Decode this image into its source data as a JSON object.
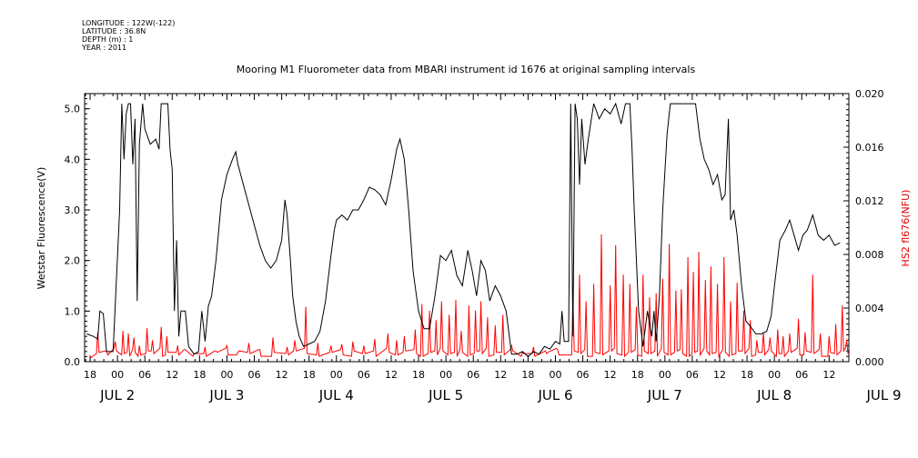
{
  "metadata_lines": [
    "LONGITUDE : 122W(-122)",
    "LATITUDE : 36.8N",
    "DEPTH (m) : 1",
    "YEAR : 2011"
  ],
  "chart_data": {
    "type": "line",
    "title": "Mooring M1 Fluorometer data from MBARI instrument id 1676 at original sampling intervals",
    "xlabel": "",
    "x_tick_labels": [
      "18",
      "00",
      "06",
      "12",
      "18",
      "00",
      "06",
      "12",
      "18",
      "00",
      "06",
      "12",
      "18",
      "00",
      "06",
      "12",
      "18",
      "00",
      "06",
      "12",
      "18",
      "00",
      "06",
      "12",
      "18",
      "00",
      "06",
      "12"
    ],
    "x_day_labels": [
      {
        "label": "JUL  2",
        "day": 2
      },
      {
        "label": "JUL  3",
        "day": 3
      },
      {
        "label": "JUL  4",
        "day": 4
      },
      {
        "label": "JUL  5",
        "day": 5
      },
      {
        "label": "JUL  6",
        "day": 6
      },
      {
        "label": "JUL  7",
        "day": 7
      },
      {
        "label": "JUL  8",
        "day": 8
      },
      {
        "label": "JUL  9",
        "day": 9
      }
    ],
    "xlim_days": [
      1.7,
      8.68
    ],
    "left_axis": {
      "label": "Wetstar Fluorescence(V)",
      "ylim": [
        0,
        5.3
      ],
      "ticks": [
        0.0,
        1.0,
        2.0,
        3.0,
        4.0,
        5.0
      ],
      "tick_labels": [
        "0.0",
        "1.0",
        "2.0",
        "3.0",
        "4.0",
        "5.0"
      ]
    },
    "right_axis": {
      "label": "HS2 fl676(NFU)",
      "ylim": [
        0,
        0.02
      ],
      "ticks": [
        0.0,
        0.004,
        0.008,
        0.012,
        0.016,
        0.02
      ],
      "tick_labels": [
        "0.000",
        "0.004",
        "0.008",
        "0.012",
        "0.016",
        "0.020"
      ]
    },
    "series": [
      {
        "axis": "left",
        "color": "#000000",
        "points": [
          [
            1.72,
            0.55
          ],
          [
            1.78,
            0.5
          ],
          [
            1.82,
            0.45
          ],
          [
            1.84,
            1.0
          ],
          [
            1.87,
            0.95
          ],
          [
            1.9,
            0.2
          ],
          [
            1.96,
            0.2
          ],
          [
            1.99,
            1.6
          ],
          [
            2.02,
            3.0
          ],
          [
            2.04,
            5.1
          ],
          [
            2.06,
            4.0
          ],
          [
            2.08,
            4.9
          ],
          [
            2.1,
            5.1
          ],
          [
            2.12,
            5.1
          ],
          [
            2.14,
            3.9
          ],
          [
            2.16,
            4.8
          ],
          [
            2.18,
            1.2
          ],
          [
            2.2,
            4.3
          ],
          [
            2.23,
            5.1
          ],
          [
            2.25,
            4.6
          ],
          [
            2.3,
            4.3
          ],
          [
            2.35,
            4.4
          ],
          [
            2.38,
            4.2
          ],
          [
            2.4,
            5.1
          ],
          [
            2.46,
            5.1
          ],
          [
            2.48,
            4.2
          ],
          [
            2.5,
            3.8
          ],
          [
            2.52,
            1.0
          ],
          [
            2.54,
            2.4
          ],
          [
            2.56,
            0.5
          ],
          [
            2.58,
            1.0
          ],
          [
            2.62,
            1.0
          ],
          [
            2.65,
            0.3
          ],
          [
            2.7,
            0.15
          ],
          [
            2.74,
            0.2
          ],
          [
            2.77,
            1.0
          ],
          [
            2.8,
            0.4
          ],
          [
            2.83,
            1.1
          ],
          [
            2.86,
            1.3
          ],
          [
            2.9,
            2.0
          ],
          [
            2.95,
            3.2
          ],
          [
            3.0,
            3.7
          ],
          [
            3.05,
            4.0
          ],
          [
            3.08,
            4.15
          ],
          [
            3.1,
            3.9
          ],
          [
            3.15,
            3.5
          ],
          [
            3.2,
            3.1
          ],
          [
            3.25,
            2.7
          ],
          [
            3.3,
            2.3
          ],
          [
            3.35,
            2.0
          ],
          [
            3.4,
            1.85
          ],
          [
            3.45,
            2.0
          ],
          [
            3.5,
            2.4
          ],
          [
            3.53,
            3.2
          ],
          [
            3.55,
            2.9
          ],
          [
            3.58,
            2.0
          ],
          [
            3.6,
            1.3
          ],
          [
            3.63,
            0.8
          ],
          [
            3.66,
            0.5
          ],
          [
            3.7,
            0.3
          ],
          [
            3.75,
            0.35
          ],
          [
            3.8,
            0.4
          ],
          [
            3.85,
            0.6
          ],
          [
            3.9,
            1.2
          ],
          [
            3.95,
            2.1
          ],
          [
            3.98,
            2.6
          ],
          [
            4.0,
            2.8
          ],
          [
            4.05,
            2.9
          ],
          [
            4.1,
            2.8
          ],
          [
            4.15,
            3.0
          ],
          [
            4.2,
            3.0
          ],
          [
            4.25,
            3.2
          ],
          [
            4.3,
            3.45
          ],
          [
            4.35,
            3.4
          ],
          [
            4.4,
            3.3
          ],
          [
            4.45,
            3.1
          ],
          [
            4.5,
            3.6
          ],
          [
            4.55,
            4.2
          ],
          [
            4.58,
            4.4
          ],
          [
            4.62,
            4.0
          ],
          [
            4.66,
            3.0
          ],
          [
            4.7,
            1.8
          ],
          [
            4.75,
            1.0
          ],
          [
            4.8,
            0.65
          ],
          [
            4.85,
            0.65
          ],
          [
            4.9,
            1.3
          ],
          [
            4.95,
            2.1
          ],
          [
            5.0,
            2.0
          ],
          [
            5.05,
            2.2
          ],
          [
            5.1,
            1.7
          ],
          [
            5.15,
            1.5
          ],
          [
            5.2,
            2.2
          ],
          [
            5.24,
            1.8
          ],
          [
            5.28,
            1.3
          ],
          [
            5.32,
            2.0
          ],
          [
            5.36,
            1.8
          ],
          [
            5.4,
            1.2
          ],
          [
            5.45,
            1.5
          ],
          [
            5.5,
            1.3
          ],
          [
            5.55,
            1.0
          ],
          [
            5.6,
            0.15
          ],
          [
            5.65,
            0.15
          ],
          [
            5.7,
            0.2
          ],
          [
            5.75,
            0.1
          ],
          [
            5.8,
            0.2
          ],
          [
            5.85,
            0.15
          ],
          [
            5.9,
            0.3
          ],
          [
            5.95,
            0.25
          ],
          [
            6.0,
            0.4
          ],
          [
            6.04,
            0.35
          ],
          [
            6.06,
            1.0
          ],
          [
            6.08,
            0.4
          ],
          [
            6.12,
            0.4
          ],
          [
            6.14,
            5.1
          ],
          [
            6.16,
            0.5
          ],
          [
            6.18,
            5.1
          ],
          [
            6.2,
            4.8
          ],
          [
            6.22,
            3.5
          ],
          [
            6.24,
            4.8
          ],
          [
            6.27,
            3.9
          ],
          [
            6.3,
            4.4
          ],
          [
            6.35,
            5.1
          ],
          [
            6.4,
            4.8
          ],
          [
            6.45,
            5.0
          ],
          [
            6.5,
            4.9
          ],
          [
            6.55,
            5.1
          ],
          [
            6.6,
            4.7
          ],
          [
            6.64,
            5.1
          ],
          [
            6.68,
            5.1
          ],
          [
            6.7,
            4.2
          ],
          [
            6.72,
            3.0
          ],
          [
            6.76,
            1.0
          ],
          [
            6.8,
            0.3
          ],
          [
            6.84,
            1.0
          ],
          [
            6.88,
            0.5
          ],
          [
            6.9,
            1.0
          ],
          [
            6.92,
            0.4
          ],
          [
            6.95,
            1.3
          ],
          [
            6.98,
            3.0
          ],
          [
            7.02,
            4.5
          ],
          [
            7.05,
            5.1
          ],
          [
            7.1,
            5.1
          ],
          [
            7.2,
            5.1
          ],
          [
            7.28,
            5.1
          ],
          [
            7.32,
            4.4
          ],
          [
            7.36,
            4.0
          ],
          [
            7.4,
            3.8
          ],
          [
            7.44,
            3.5
          ],
          [
            7.48,
            3.7
          ],
          [
            7.52,
            3.2
          ],
          [
            7.55,
            3.3
          ],
          [
            7.58,
            4.8
          ],
          [
            7.6,
            2.8
          ],
          [
            7.63,
            3.0
          ],
          [
            7.66,
            2.5
          ],
          [
            7.7,
            1.5
          ],
          [
            7.74,
            0.8
          ],
          [
            7.78,
            0.7
          ],
          [
            7.83,
            0.55
          ],
          [
            7.88,
            0.55
          ],
          [
            7.93,
            0.6
          ],
          [
            7.97,
            0.9
          ],
          [
            8.0,
            1.5
          ],
          [
            8.05,
            2.4
          ],
          [
            8.1,
            2.6
          ],
          [
            8.14,
            2.8
          ],
          [
            8.18,
            2.5
          ],
          [
            8.22,
            2.2
          ],
          [
            8.26,
            2.5
          ],
          [
            8.3,
            2.6
          ],
          [
            8.35,
            2.9
          ],
          [
            8.4,
            2.5
          ],
          [
            8.45,
            2.4
          ],
          [
            8.5,
            2.5
          ],
          [
            8.55,
            2.3
          ],
          [
            8.6,
            2.35
          ]
        ]
      },
      {
        "axis": "right",
        "color": "#ff0000",
        "spikes": [
          [
            1.76,
            0.0003
          ],
          [
            1.82,
            0.0022
          ],
          [
            1.9,
            0.0008
          ],
          [
            1.98,
            0.0015
          ],
          [
            2.05,
            0.0023
          ],
          [
            2.1,
            0.0021
          ],
          [
            2.15,
            0.0018
          ],
          [
            2.2,
            0.0012
          ],
          [
            2.27,
            0.0025
          ],
          [
            2.32,
            0.0016
          ],
          [
            2.4,
            0.0026
          ],
          [
            2.45,
            0.0019
          ],
          [
            2.55,
            0.0012
          ],
          [
            2.62,
            0.0009
          ],
          [
            2.7,
            0.0006
          ],
          [
            2.8,
            0.0011
          ],
          [
            2.9,
            0.0008
          ],
          [
            3.0,
            0.0012
          ],
          [
            3.1,
            0.0007
          ],
          [
            3.2,
            0.0014
          ],
          [
            3.3,
            0.0009
          ],
          [
            3.42,
            0.0018
          ],
          [
            3.55,
            0.0011
          ],
          [
            3.62,
            0.0016
          ],
          [
            3.72,
            0.0041
          ],
          [
            3.83,
            0.0014
          ],
          [
            3.95,
            0.0012
          ],
          [
            4.05,
            0.0013
          ],
          [
            4.15,
            0.0015
          ],
          [
            4.25,
            0.0012
          ],
          [
            4.35,
            0.0017
          ],
          [
            4.47,
            0.0021
          ],
          [
            4.55,
            0.0016
          ],
          [
            4.62,
            0.0019
          ],
          [
            4.72,
            0.0024
          ],
          [
            4.78,
            0.0043
          ],
          [
            4.85,
            0.0038
          ],
          [
            4.91,
            0.0031
          ],
          [
            4.96,
            0.0045
          ],
          [
            5.03,
            0.0035
          ],
          [
            5.09,
            0.0046
          ],
          [
            5.14,
            0.0023
          ],
          [
            5.21,
            0.0042
          ],
          [
            5.27,
            0.0038
          ],
          [
            5.32,
            0.0045
          ],
          [
            5.38,
            0.0033
          ],
          [
            5.45,
            0.0027
          ],
          [
            5.52,
            0.0035
          ],
          [
            5.6,
            0.0012
          ],
          [
            5.7,
            0.0007
          ],
          [
            5.8,
            0.0011
          ],
          [
            5.92,
            0.0006
          ],
          [
            6.02,
            0.0009
          ],
          [
            6.16,
            0.0048
          ],
          [
            6.22,
            0.0065
          ],
          [
            6.28,
            0.0045
          ],
          [
            6.35,
            0.0058
          ],
          [
            6.42,
            0.0095
          ],
          [
            6.5,
            0.0057
          ],
          [
            6.55,
            0.0087
          ],
          [
            6.62,
            0.0065
          ],
          [
            6.68,
            0.0058
          ],
          [
            6.74,
            0.0041
          ],
          [
            6.8,
            0.0065
          ],
          [
            6.86,
            0.0048
          ],
          [
            6.92,
            0.0051
          ],
          [
            6.98,
            0.0062
          ],
          [
            7.04,
            0.0088
          ],
          [
            7.1,
            0.0053
          ],
          [
            7.15,
            0.0054
          ],
          [
            7.21,
            0.0078
          ],
          [
            7.26,
            0.0067
          ],
          [
            7.31,
            0.0082
          ],
          [
            7.37,
            0.0061
          ],
          [
            7.42,
            0.0071
          ],
          [
            7.48,
            0.0058
          ],
          [
            7.54,
            0.0078
          ],
          [
            7.6,
            0.0045
          ],
          [
            7.66,
            0.0059
          ],
          [
            7.72,
            0.0038
          ],
          [
            7.78,
            0.0031
          ],
          [
            7.84,
            0.0016
          ],
          [
            7.9,
            0.0022
          ],
          [
            7.96,
            0.0018
          ],
          [
            8.03,
            0.0024
          ],
          [
            8.08,
            0.0019
          ],
          [
            8.14,
            0.0021
          ],
          [
            8.22,
            0.0032
          ],
          [
            8.28,
            0.0022
          ],
          [
            8.35,
            0.0065
          ],
          [
            8.42,
            0.0021
          ],
          [
            8.5,
            0.0019
          ],
          [
            8.56,
            0.0028
          ],
          [
            8.62,
            0.0042
          ],
          [
            8.66,
            0.0016
          ]
        ]
      }
    ],
    "grid": false
  }
}
